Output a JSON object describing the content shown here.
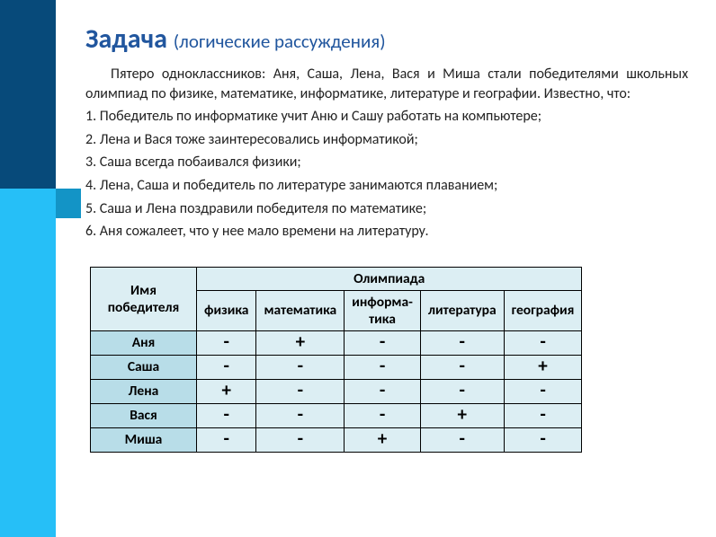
{
  "colors": {
    "sidebar_top": "#074a7a",
    "sidebar_bottom": "#26bff7",
    "accent": "#1394c6",
    "title": "#21569e",
    "text": "#222222",
    "table_bg": "#dceef3",
    "row_label_bg": "#b8dde8",
    "border": "#000000"
  },
  "title_main": "Задача",
  "title_sub": "(логические рассуждения)",
  "intro": "Пятеро одноклассников: Аня, Саша, Лена, Вася и Миша стали победителями школьных олимпиад по физике, математике, информатике, литературе и географии. Известно, что:",
  "facts": [
    "1. Победитель по информатике учит Аню и Сашу работать на компьютере;",
    "2.   Лена и Вася тоже заинтересовались информатикой;",
    "3.   Саша всегда побаивался физики;",
    "4.   Лена, Саша и победитель по литературе занимаются плаванием;",
    "5.   Саша и Лена поздравили победителя по математике;",
    "6.   Аня сожалеет, что у нее мало времени на литературу."
  ],
  "table": {
    "name_header": "Имя победителя",
    "group_header": "Олимпиада",
    "columns": [
      "физика",
      "математика",
      "информа-\nтика",
      "литература",
      "география"
    ],
    "rows": [
      {
        "name": "Аня",
        "cells": [
          "-",
          "+",
          "-",
          "-",
          "-"
        ]
      },
      {
        "name": "Саша",
        "cells": [
          "-",
          "-",
          "-",
          "-",
          "+"
        ]
      },
      {
        "name": "Лена",
        "cells": [
          "+",
          "-",
          "-",
          "-",
          "-"
        ]
      },
      {
        "name": "Вася",
        "cells": [
          "-",
          "-",
          "-",
          "+",
          "-"
        ]
      },
      {
        "name": "Миша",
        "cells": [
          "-",
          "-",
          "+",
          "-",
          "-"
        ]
      }
    ]
  }
}
